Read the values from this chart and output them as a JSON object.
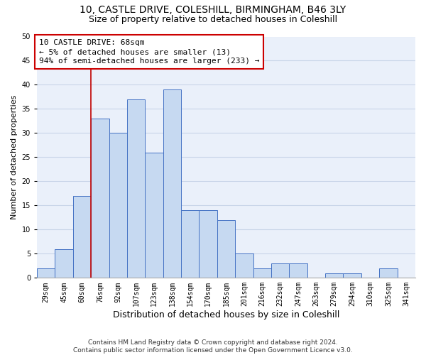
{
  "title1": "10, CASTLE DRIVE, COLESHILL, BIRMINGHAM, B46 3LY",
  "title2": "Size of property relative to detached houses in Coleshill",
  "xlabel": "Distribution of detached houses by size in Coleshill",
  "ylabel": "Number of detached properties",
  "categories": [
    "29sqm",
    "45sqm",
    "60sqm",
    "76sqm",
    "92sqm",
    "107sqm",
    "123sqm",
    "138sqm",
    "154sqm",
    "170sqm",
    "185sqm",
    "201sqm",
    "216sqm",
    "232sqm",
    "247sqm",
    "263sqm",
    "279sqm",
    "294sqm",
    "310sqm",
    "325sqm",
    "341sqm"
  ],
  "values": [
    2,
    6,
    17,
    33,
    30,
    37,
    26,
    39,
    14,
    14,
    12,
    5,
    2,
    3,
    3,
    0,
    1,
    1,
    0,
    2,
    0
  ],
  "bar_color": "#c6d9f1",
  "bar_edge_color": "#4472c4",
  "grid_color": "#c8d4e8",
  "background_color": "#eaf0fa",
  "annotation_text": "10 CASTLE DRIVE: 68sqm\n← 5% of detached houses are smaller (13)\n94% of semi-detached houses are larger (233) →",
  "vline_color": "#c00000",
  "vline_x": 2.5,
  "ylim": [
    0,
    50
  ],
  "yticks": [
    0,
    5,
    10,
    15,
    20,
    25,
    30,
    35,
    40,
    45,
    50
  ],
  "footnote": "Contains HM Land Registry data © Crown copyright and database right 2024.\nContains public sector information licensed under the Open Government Licence v3.0.",
  "title1_fontsize": 10,
  "title2_fontsize": 9,
  "xlabel_fontsize": 9,
  "ylabel_fontsize": 8,
  "tick_fontsize": 7,
  "annot_fontsize": 8,
  "footnote_fontsize": 6.5
}
